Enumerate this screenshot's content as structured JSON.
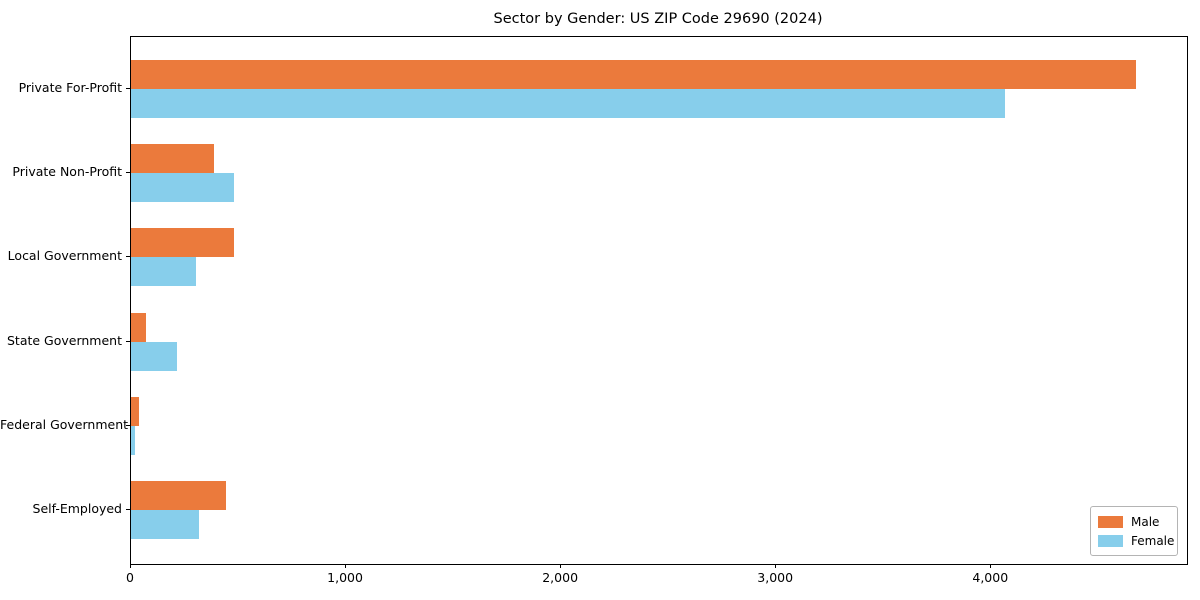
{
  "chart_data": {
    "type": "bar",
    "orientation": "horizontal",
    "title": "Sector by Gender: US ZIP Code 29690 (2024)",
    "xlabel": "",
    "ylabel": "",
    "categories": [
      "Private For-Profit",
      "Private Non-Profit",
      "Local Government",
      "State Government",
      "Federal Government",
      "Self-Employed"
    ],
    "series": [
      {
        "name": "Male",
        "color": "#EB7A3C",
        "values": [
          4675,
          385,
          480,
          70,
          38,
          440
        ]
      },
      {
        "name": "Female",
        "color": "#87CEEB",
        "values": [
          4065,
          480,
          300,
          215,
          18,
          315
        ]
      }
    ],
    "xlim": [
      0,
      4910
    ],
    "xticks": [
      0,
      1000,
      2000,
      3000,
      4000
    ],
    "xtick_labels": [
      "0",
      "1,000",
      "2,000",
      "3,000",
      "4,000"
    ],
    "grid": "off",
    "legend_position": "lower right",
    "axis_color": "#000000",
    "background_color": "#ffffff"
  }
}
